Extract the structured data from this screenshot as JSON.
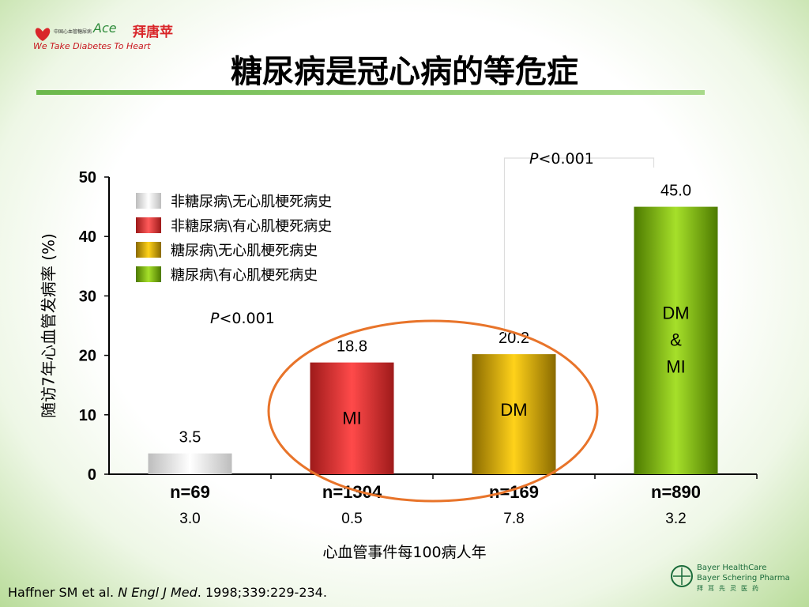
{
  "header": {
    "logo_tagline": "We Take Diabetes To Heart",
    "logo_brand": "Ace",
    "logo_product": "拜唐苹",
    "title": "糖尿病是冠心病的等危症"
  },
  "chart_data": {
    "type": "bar",
    "ylabel": "随访7年心血管发病率 (%)",
    "ylim": [
      0,
      50
    ],
    "yticks": [
      "0",
      "10",
      "20",
      "30",
      "40",
      "50"
    ],
    "xlabel": "心血管事件每100病人年",
    "categories": [
      "n=69",
      "n=1304",
      "n=169",
      "n=890"
    ],
    "values": [
      3.5,
      18.8,
      20.2,
      45.0
    ],
    "value_labels": [
      "3.5",
      "18.8",
      "20.2",
      "45.0"
    ],
    "bar_texts": [
      "",
      "MI",
      "DM",
      "DM\n&\nMI"
    ],
    "event_rates": [
      "3.0",
      "0.5",
      "7.8",
      "3.2"
    ],
    "colors": [
      "#e6e6e6",
      "#e33b3b",
      "#e6b800",
      "#7fbf1a"
    ],
    "legend": [
      {
        "label": "非糖尿病\\无心肌梗死病史",
        "color": "#e6e6e6"
      },
      {
        "label": "非糖尿病\\有心肌梗死病史",
        "color": "#e33b3b"
      },
      {
        "label": "糖尿病\\无心肌梗死病史",
        "color": "#e6b800"
      },
      {
        "label": "糖尿病\\有心肌梗死病史",
        "color": "#7fbf1a"
      }
    ],
    "annotations": [
      {
        "text_italic": "P",
        "text_rest": "<0.001",
        "between": [
          "n=1304",
          "n=169"
        ]
      },
      {
        "text_italic": "P",
        "text_rest": "<0.001",
        "between": [
          "n=169",
          "n=890"
        ]
      }
    ],
    "highlight": {
      "shape": "ellipse",
      "covers": [
        "n=1304",
        "n=169"
      ],
      "color": "#e8742a"
    }
  },
  "footer": {
    "citation_authors": "Haffner SM et al.",
    "citation_journal": "N Engl J Med",
    "citation_rest": ". 1998;339:229-234.",
    "company_1": "Bayer HealthCare",
    "company_2": "Bayer Schering Pharma",
    "company_cn": "拜耳先灵医药"
  }
}
